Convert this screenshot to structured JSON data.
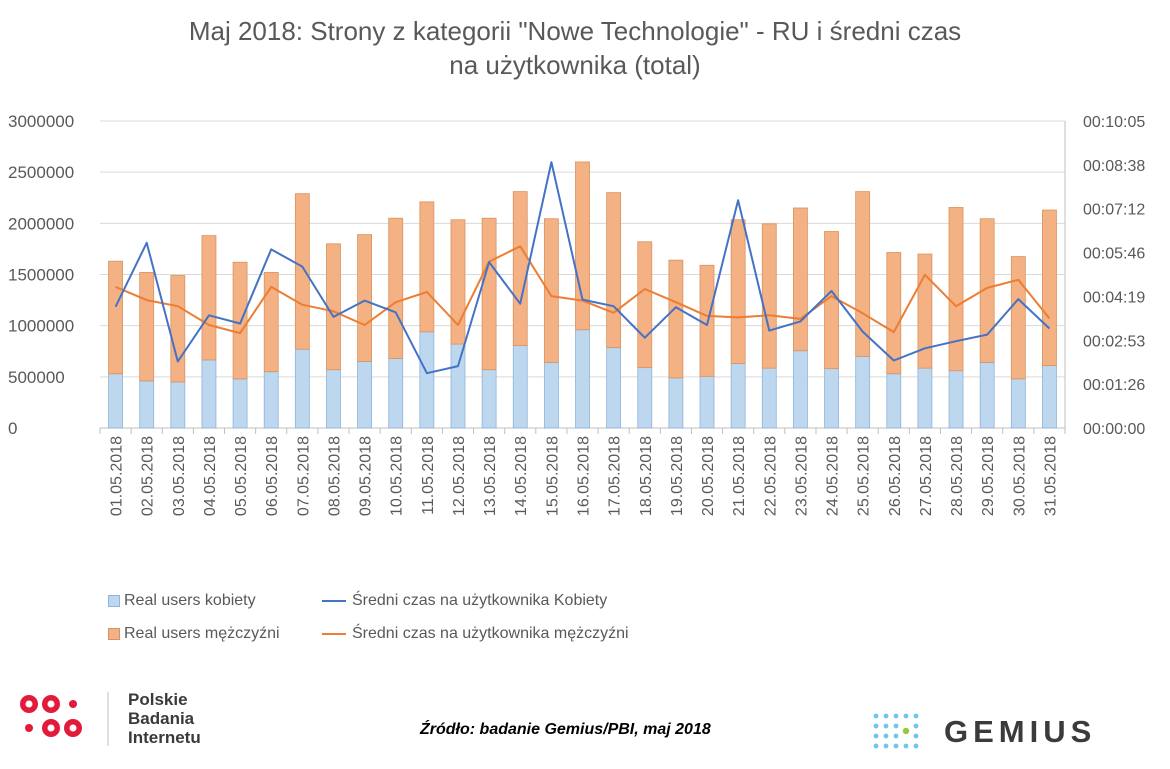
{
  "title_line1": "Maj 2018: Strony z kategorii \"Nowe Technologie\" - RU i średni czas",
  "title_line2": "na użytkownika (total)",
  "source_text": "Źródło: badanie Gemius/PBI, maj 2018",
  "pbi_logo_text": [
    "Polskie",
    "Badania",
    "Internetu"
  ],
  "gemius_logo_text": "GEMIUS",
  "colors": {
    "kobiety_bar": "#bdd7ee",
    "mezczyzni_bar": "#f4b183",
    "kobiety_line": "#4472c4",
    "mezczyzni_line": "#ed7d31",
    "pbi_red": "#e31b3a"
  },
  "chart_data": {
    "type": "bar",
    "stacked": true,
    "categories": [
      "01.05.2018",
      "02.05.2018",
      "03.05.2018",
      "04.05.2018",
      "05.05.2018",
      "06.05.2018",
      "07.05.2018",
      "08.05.2018",
      "09.05.2018",
      "10.05.2018",
      "11.05.2018",
      "12.05.2018",
      "13.05.2018",
      "14.05.2018",
      "15.05.2018",
      "16.05.2018",
      "17.05.2018",
      "18.05.2018",
      "19.05.2018",
      "20.05.2018",
      "21.05.2018",
      "22.05.2018",
      "23.05.2018",
      "24.05.2018",
      "25.05.2018",
      "26.05.2018",
      "27.05.2018",
      "28.05.2018",
      "29.05.2018",
      "30.05.2018",
      "31.05.2018"
    ],
    "y_left": {
      "ylim": [
        0,
        3000000
      ],
      "ticks": [
        "3000000",
        "2500000",
        "2000000",
        "1500000",
        "1000000",
        "500000",
        "0"
      ]
    },
    "y_right": {
      "ylim_seconds": [
        0,
        605
      ],
      "ticks": [
        "00:10:05",
        "00:08:38",
        "00:07:12",
        "00:05:46",
        "00:04:19",
        "00:02:53",
        "00:01:26",
        "00:00:00"
      ]
    },
    "series": [
      {
        "name": "Real users kobiety",
        "kind": "bar",
        "axis": "left",
        "values": [
          530000,
          460000,
          450000,
          665000,
          480000,
          550000,
          770000,
          570000,
          650000,
          680000,
          940000,
          820000,
          570000,
          805000,
          640000,
          960000,
          785000,
          590000,
          490000,
          505000,
          630000,
          585000,
          755000,
          580000,
          700000,
          530000,
          585000,
          560000,
          640000,
          480000,
          610000
        ]
      },
      {
        "name": "Real users mężczyźni",
        "kind": "bar",
        "axis": "left",
        "values": [
          1100000,
          1060000,
          1040000,
          1215000,
          1140000,
          970000,
          1520000,
          1230000,
          1240000,
          1370000,
          1270000,
          1215000,
          1480000,
          1505000,
          1405000,
          1640000,
          1515000,
          1230000,
          1150000,
          1085000,
          1405000,
          1410000,
          1395000,
          1340000,
          1610000,
          1185000,
          1115000,
          1595000,
          1405000,
          1195000,
          1520000
        ]
      },
      {
        "name": "Średni czas na użytkownika Kobiety",
        "kind": "line",
        "axis": "right",
        "format": "hh:mm:ss",
        "values": [
          "00:03:59",
          "00:06:05",
          "00:02:11",
          "00:03:42",
          "00:03:26",
          "00:05:52",
          "00:05:18",
          "00:03:39",
          "00:04:11",
          "00:03:48",
          "00:01:48",
          "00:02:02",
          "00:05:27",
          "00:04:05",
          "00:08:44",
          "00:04:13",
          "00:04:00",
          "00:02:58",
          "00:03:58",
          "00:03:23",
          "00:07:29",
          "00:03:12",
          "00:03:30",
          "00:04:30",
          "00:03:10",
          "00:02:13",
          "00:02:37",
          "00:02:51",
          "00:03:04",
          "00:04:14",
          "00:03:16"
        ]
      },
      {
        "name": "Średni czas na użytkownika mężczyźni",
        "kind": "line",
        "axis": "right",
        "format": "hh:mm:ss",
        "values": [
          "00:04:38",
          "00:04:12",
          "00:04:00",
          "00:03:23",
          "00:03:07",
          "00:04:38",
          "00:04:03",
          "00:03:50",
          "00:03:23",
          "00:04:08",
          "00:04:28",
          "00:03:23",
          "00:05:28",
          "00:05:58",
          "00:04:20",
          "00:04:11",
          "00:03:47",
          "00:04:34",
          "00:04:08",
          "00:03:41",
          "00:03:38",
          "00:03:42",
          "00:03:35",
          "00:04:20",
          "00:03:46",
          "00:03:09",
          "00:05:02",
          "00:04:00",
          "00:04:36",
          "00:04:52",
          "00:03:36"
        ]
      }
    ],
    "legend": [
      {
        "label": "Real users kobiety",
        "kind": "box",
        "color": "#bdd7ee"
      },
      {
        "label": "Średni czas na użytkownika Kobiety",
        "kind": "line",
        "color": "#4472c4"
      },
      {
        "label": "Real users mężczyźni",
        "kind": "box",
        "color": "#f4b183"
      },
      {
        "label": "Średni czas na użytkownika mężczyźni",
        "kind": "line",
        "color": "#ed7d31"
      }
    ],
    "legend_position": "bottom",
    "grid": true,
    "xlabel": "",
    "ylabel": ""
  }
}
